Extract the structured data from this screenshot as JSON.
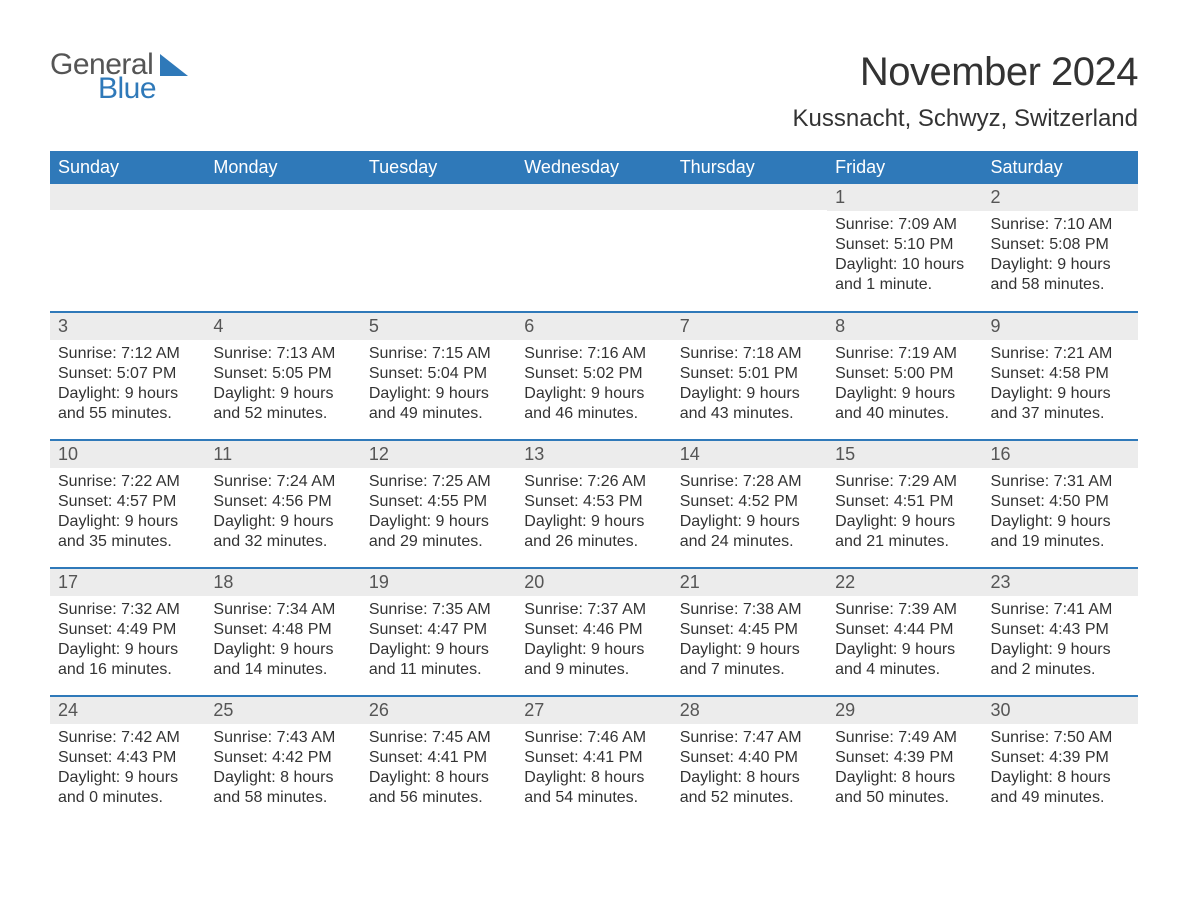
{
  "brand": {
    "word1": "General",
    "word2": "Blue"
  },
  "title": "November 2024",
  "location": "Kussnacht, Schwyz, Switzerland",
  "colors": {
    "header_bg": "#2f79b9",
    "header_text": "#ffffff",
    "daynum_bg": "#ececec",
    "text": "#333333",
    "page_bg": "#ffffff"
  },
  "fonts": {
    "title_size_pt": 30,
    "location_size_pt": 18,
    "header_size_pt": 14,
    "body_size_pt": 12
  },
  "day_headers": [
    "Sunday",
    "Monday",
    "Tuesday",
    "Wednesday",
    "Thursday",
    "Friday",
    "Saturday"
  ],
  "weeks": [
    [
      null,
      null,
      null,
      null,
      null,
      {
        "n": "1",
        "sunrise": "Sunrise: 7:09 AM",
        "sunset": "Sunset: 5:10 PM",
        "d1": "Daylight: 10 hours",
        "d2": "and 1 minute."
      },
      {
        "n": "2",
        "sunrise": "Sunrise: 7:10 AM",
        "sunset": "Sunset: 5:08 PM",
        "d1": "Daylight: 9 hours",
        "d2": "and 58 minutes."
      }
    ],
    [
      {
        "n": "3",
        "sunrise": "Sunrise: 7:12 AM",
        "sunset": "Sunset: 5:07 PM",
        "d1": "Daylight: 9 hours",
        "d2": "and 55 minutes."
      },
      {
        "n": "4",
        "sunrise": "Sunrise: 7:13 AM",
        "sunset": "Sunset: 5:05 PM",
        "d1": "Daylight: 9 hours",
        "d2": "and 52 minutes."
      },
      {
        "n": "5",
        "sunrise": "Sunrise: 7:15 AM",
        "sunset": "Sunset: 5:04 PM",
        "d1": "Daylight: 9 hours",
        "d2": "and 49 minutes."
      },
      {
        "n": "6",
        "sunrise": "Sunrise: 7:16 AM",
        "sunset": "Sunset: 5:02 PM",
        "d1": "Daylight: 9 hours",
        "d2": "and 46 minutes."
      },
      {
        "n": "7",
        "sunrise": "Sunrise: 7:18 AM",
        "sunset": "Sunset: 5:01 PM",
        "d1": "Daylight: 9 hours",
        "d2": "and 43 minutes."
      },
      {
        "n": "8",
        "sunrise": "Sunrise: 7:19 AM",
        "sunset": "Sunset: 5:00 PM",
        "d1": "Daylight: 9 hours",
        "d2": "and 40 minutes."
      },
      {
        "n": "9",
        "sunrise": "Sunrise: 7:21 AM",
        "sunset": "Sunset: 4:58 PM",
        "d1": "Daylight: 9 hours",
        "d2": "and 37 minutes."
      }
    ],
    [
      {
        "n": "10",
        "sunrise": "Sunrise: 7:22 AM",
        "sunset": "Sunset: 4:57 PM",
        "d1": "Daylight: 9 hours",
        "d2": "and 35 minutes."
      },
      {
        "n": "11",
        "sunrise": "Sunrise: 7:24 AM",
        "sunset": "Sunset: 4:56 PM",
        "d1": "Daylight: 9 hours",
        "d2": "and 32 minutes."
      },
      {
        "n": "12",
        "sunrise": "Sunrise: 7:25 AM",
        "sunset": "Sunset: 4:55 PM",
        "d1": "Daylight: 9 hours",
        "d2": "and 29 minutes."
      },
      {
        "n": "13",
        "sunrise": "Sunrise: 7:26 AM",
        "sunset": "Sunset: 4:53 PM",
        "d1": "Daylight: 9 hours",
        "d2": "and 26 minutes."
      },
      {
        "n": "14",
        "sunrise": "Sunrise: 7:28 AM",
        "sunset": "Sunset: 4:52 PM",
        "d1": "Daylight: 9 hours",
        "d2": "and 24 minutes."
      },
      {
        "n": "15",
        "sunrise": "Sunrise: 7:29 AM",
        "sunset": "Sunset: 4:51 PM",
        "d1": "Daylight: 9 hours",
        "d2": "and 21 minutes."
      },
      {
        "n": "16",
        "sunrise": "Sunrise: 7:31 AM",
        "sunset": "Sunset: 4:50 PM",
        "d1": "Daylight: 9 hours",
        "d2": "and 19 minutes."
      }
    ],
    [
      {
        "n": "17",
        "sunrise": "Sunrise: 7:32 AM",
        "sunset": "Sunset: 4:49 PM",
        "d1": "Daylight: 9 hours",
        "d2": "and 16 minutes."
      },
      {
        "n": "18",
        "sunrise": "Sunrise: 7:34 AM",
        "sunset": "Sunset: 4:48 PM",
        "d1": "Daylight: 9 hours",
        "d2": "and 14 minutes."
      },
      {
        "n": "19",
        "sunrise": "Sunrise: 7:35 AM",
        "sunset": "Sunset: 4:47 PM",
        "d1": "Daylight: 9 hours",
        "d2": "and 11 minutes."
      },
      {
        "n": "20",
        "sunrise": "Sunrise: 7:37 AM",
        "sunset": "Sunset: 4:46 PM",
        "d1": "Daylight: 9 hours",
        "d2": "and 9 minutes."
      },
      {
        "n": "21",
        "sunrise": "Sunrise: 7:38 AM",
        "sunset": "Sunset: 4:45 PM",
        "d1": "Daylight: 9 hours",
        "d2": "and 7 minutes."
      },
      {
        "n": "22",
        "sunrise": "Sunrise: 7:39 AM",
        "sunset": "Sunset: 4:44 PM",
        "d1": "Daylight: 9 hours",
        "d2": "and 4 minutes."
      },
      {
        "n": "23",
        "sunrise": "Sunrise: 7:41 AM",
        "sunset": "Sunset: 4:43 PM",
        "d1": "Daylight: 9 hours",
        "d2": "and 2 minutes."
      }
    ],
    [
      {
        "n": "24",
        "sunrise": "Sunrise: 7:42 AM",
        "sunset": "Sunset: 4:43 PM",
        "d1": "Daylight: 9 hours",
        "d2": "and 0 minutes."
      },
      {
        "n": "25",
        "sunrise": "Sunrise: 7:43 AM",
        "sunset": "Sunset: 4:42 PM",
        "d1": "Daylight: 8 hours",
        "d2": "and 58 minutes."
      },
      {
        "n": "26",
        "sunrise": "Sunrise: 7:45 AM",
        "sunset": "Sunset: 4:41 PM",
        "d1": "Daylight: 8 hours",
        "d2": "and 56 minutes."
      },
      {
        "n": "27",
        "sunrise": "Sunrise: 7:46 AM",
        "sunset": "Sunset: 4:41 PM",
        "d1": "Daylight: 8 hours",
        "d2": "and 54 minutes."
      },
      {
        "n": "28",
        "sunrise": "Sunrise: 7:47 AM",
        "sunset": "Sunset: 4:40 PM",
        "d1": "Daylight: 8 hours",
        "d2": "and 52 minutes."
      },
      {
        "n": "29",
        "sunrise": "Sunrise: 7:49 AM",
        "sunset": "Sunset: 4:39 PM",
        "d1": "Daylight: 8 hours",
        "d2": "and 50 minutes."
      },
      {
        "n": "30",
        "sunrise": "Sunrise: 7:50 AM",
        "sunset": "Sunset: 4:39 PM",
        "d1": "Daylight: 8 hours",
        "d2": "and 49 minutes."
      }
    ]
  ]
}
